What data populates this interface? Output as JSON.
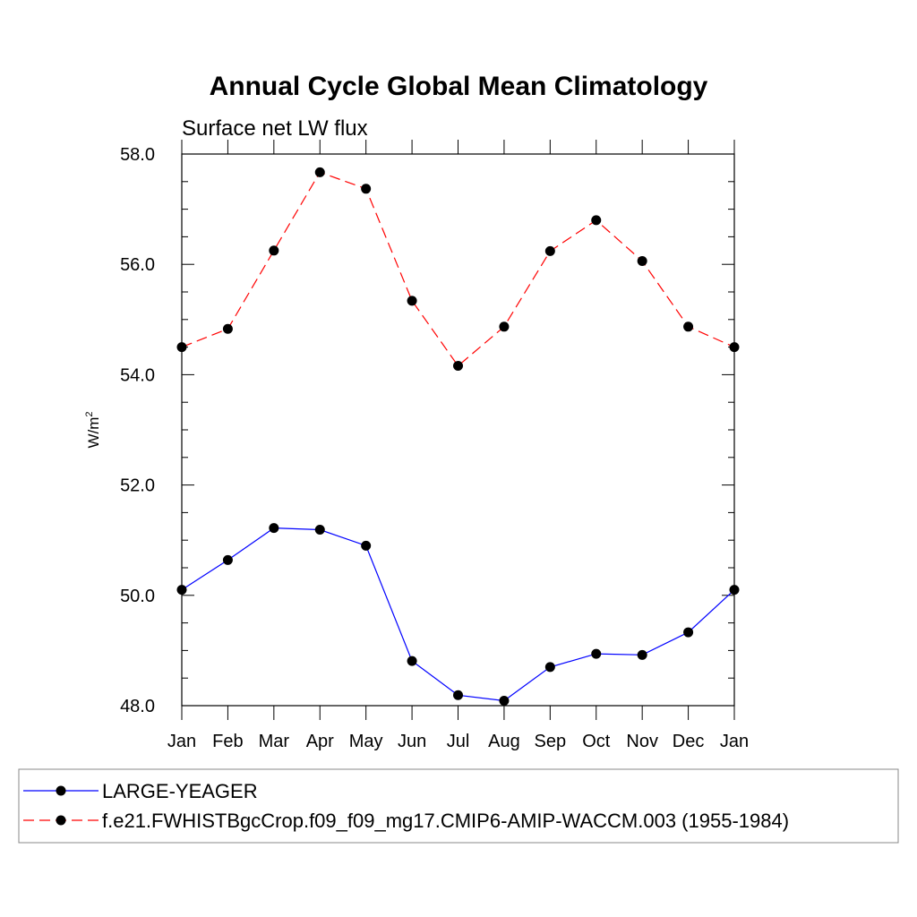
{
  "chart_data": {
    "type": "line",
    "title": "Annual Cycle Global Mean Climatology",
    "subtitle": "Surface net LW flux",
    "ylabel": "W/m",
    "ylabel_sup": "2",
    "ylim": [
      48.0,
      58.0
    ],
    "yticks": [
      "48.0",
      "50.0",
      "52.0",
      "54.0",
      "56.0",
      "58.0"
    ],
    "categories": [
      "Jan",
      "Feb",
      "Mar",
      "Apr",
      "May",
      "Jun",
      "Jul",
      "Aug",
      "Sep",
      "Oct",
      "Nov",
      "Dec",
      "Jan"
    ],
    "grid": false,
    "legend_position": "bottom",
    "series": [
      {
        "name": "LARGE-YEAGER",
        "color": "#0000ff",
        "dash": "solid",
        "values": [
          50.1,
          50.64,
          51.22,
          51.19,
          50.9,
          48.81,
          48.19,
          48.09,
          48.7,
          48.94,
          48.92,
          49.33,
          50.1
        ]
      },
      {
        "name": "f.e21.FWHISTBgcCrop.f09_f09_mg17.CMIP6-AMIP-WACCM.003 (1955-1984)",
        "color": "#ff0000",
        "dash": "dashed",
        "values": [
          54.5,
          54.83,
          56.25,
          57.67,
          57.37,
          55.34,
          54.16,
          54.87,
          56.24,
          56.8,
          56.06,
          54.87,
          54.5
        ]
      }
    ]
  }
}
